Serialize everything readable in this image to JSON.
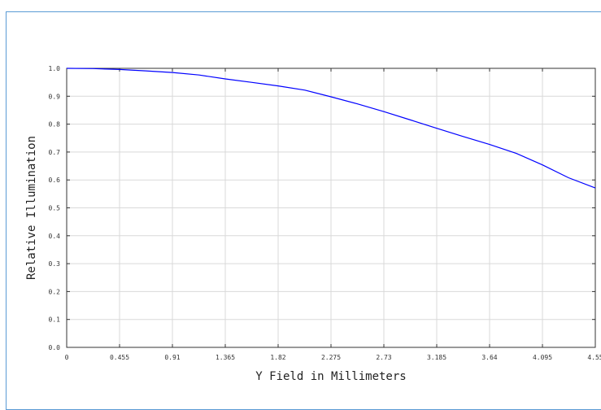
{
  "chart_data": {
    "type": "line",
    "title": "",
    "xlabel": "Y Field in Millimeters",
    "ylabel": "Relative Illumination",
    "xlim": [
      0,
      4.55
    ],
    "ylim": [
      0,
      1.0
    ],
    "x_ticks": [
      "0",
      "0.455",
      "0.91",
      "1.365",
      "1.82",
      "2.275",
      "2.73",
      "3.185",
      "3.64",
      "4.095",
      "4.55"
    ],
    "y_ticks": [
      "0.0",
      "0.1",
      "0.2",
      "0.3",
      "0.4",
      "0.5",
      "0.6",
      "0.7",
      "0.8",
      "0.9",
      "1.0"
    ],
    "grid": true,
    "series": [
      {
        "color": "#0000ff",
        "x": [
          0,
          0.23,
          0.455,
          0.68,
          0.91,
          1.14,
          1.365,
          1.59,
          1.82,
          2.05,
          2.275,
          2.5,
          2.73,
          2.96,
          3.185,
          3.41,
          3.64,
          3.87,
          4.095,
          4.32,
          4.55
        ],
        "y": [
          1.0,
          0.999,
          0.996,
          0.991,
          0.985,
          0.976,
          0.962,
          0.95,
          0.937,
          0.922,
          0.898,
          0.873,
          0.845,
          0.815,
          0.785,
          0.756,
          0.727,
          0.695,
          0.654,
          0.608,
          0.571
        ]
      }
    ]
  }
}
